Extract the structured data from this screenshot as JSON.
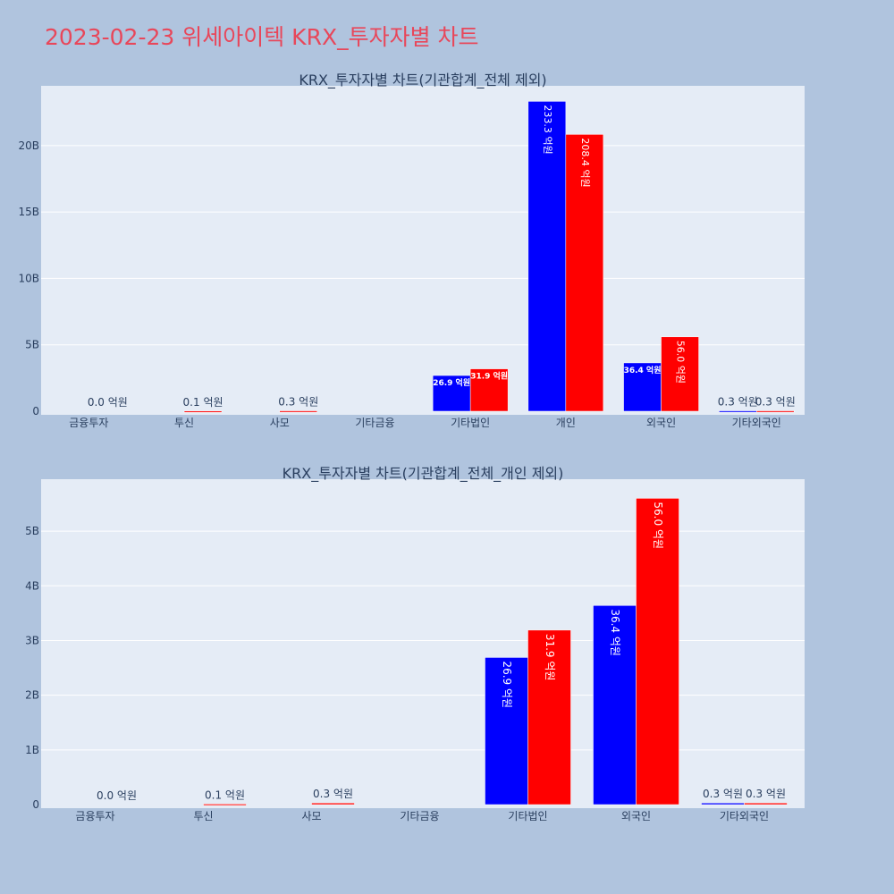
{
  "title": "2023-02-23 위세아이텍 KRX_투자자별 차트",
  "colors": {
    "buy": "#0000ff",
    "sell": "#ff0000",
    "plot_bg": "#e5ecf6",
    "page_bg": "#b0c4de",
    "title": "#e8475a"
  },
  "chart_data": [
    {
      "type": "bar",
      "title": "KRX_투자자별 차트(기관합계_전체 제외)",
      "categories": [
        "금융투자",
        "투신",
        "사모",
        "기타금융",
        "기타법인",
        "개인",
        "외국인",
        "기타외국인"
      ],
      "ylim": [
        0,
        24.5
      ],
      "yticks": [
        0,
        5,
        10,
        15,
        20
      ],
      "ytick_labels": [
        "0",
        "5B",
        "10B",
        "15B",
        "20B"
      ],
      "grid": true,
      "series": [
        {
          "color": "#0000ff",
          "values": [
            0,
            0,
            0,
            0,
            2.69,
            23.33,
            3.64,
            0.03
          ],
          "labels": [
            "",
            "",
            "",
            "",
            "26.9 억원",
            "233.3 억원",
            "36.4 억원",
            "0.3 억원"
          ]
        },
        {
          "color": "#ff0000",
          "values": [
            0,
            0.01,
            0.03,
            0,
            3.19,
            20.84,
            5.6,
            0.03
          ],
          "labels": [
            "0.0 억원",
            "0.1 억원",
            "0.3 억원",
            "",
            "31.9 억원",
            "208.4 억원",
            "56.0 억원",
            "0.3 억원"
          ]
        }
      ]
    },
    {
      "type": "bar",
      "title": "KRX_투자자별 차트(기관합계_전체_개인 제외)",
      "categories": [
        "금융투자",
        "투신",
        "사모",
        "기타금융",
        "기타법인",
        "외국인",
        "기타외국인"
      ],
      "ylim": [
        0,
        5.95
      ],
      "yticks": [
        0,
        1,
        2,
        3,
        4,
        5
      ],
      "ytick_labels": [
        "0",
        "1B",
        "2B",
        "3B",
        "4B",
        "5B"
      ],
      "grid": true,
      "series": [
        {
          "color": "#0000ff",
          "values": [
            0,
            0,
            0,
            0,
            2.69,
            3.64,
            0.03
          ],
          "labels": [
            "",
            "",
            "",
            "",
            "26.9 억원",
            "36.4 억원",
            "0.3 억원"
          ]
        },
        {
          "color": "#ff0000",
          "values": [
            0,
            0.01,
            0.03,
            0,
            3.19,
            5.6,
            0.03
          ],
          "labels": [
            "0.0 억원",
            "0.1 억원",
            "0.3 억원",
            "",
            "31.9 억원",
            "56.0 억원",
            "0.3 억원"
          ]
        }
      ]
    }
  ]
}
